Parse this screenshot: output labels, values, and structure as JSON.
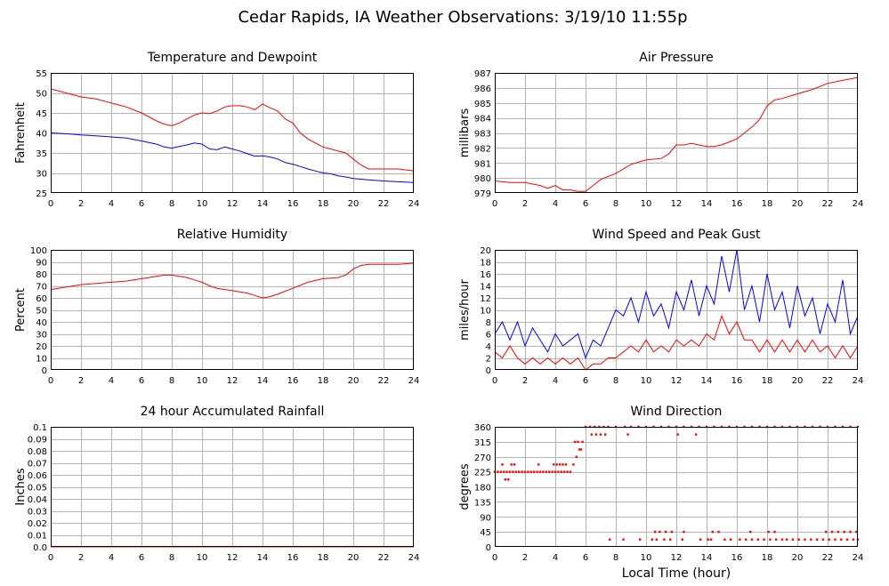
{
  "page": {
    "title": "Cedar Rapids, IA Weather Observations: 3/19/10 11:55p",
    "x_axis_title": "Local Time (hour)"
  },
  "colors": {
    "red": "#ff0000",
    "blue": "#0000ff",
    "grid": "#b4b4b4"
  },
  "chart_data": [
    {
      "id": "temp",
      "type": "line",
      "title": "Temperature and Dewpoint",
      "xlabel": "",
      "ylabel": "Fahrenheit",
      "xlim": [
        0,
        24
      ],
      "ylim": [
        25,
        55
      ],
      "xticks": [
        0,
        2,
        4,
        6,
        8,
        10,
        12,
        14,
        16,
        18,
        20,
        22,
        24
      ],
      "yticks": [
        "25",
        "30",
        "35",
        "40",
        "45",
        "50",
        "55"
      ],
      "grid": true,
      "series": [
        {
          "color": "#ff0000",
          "x": [
            0,
            1,
            2,
            3,
            4,
            5,
            6,
            7,
            7.5,
            8,
            8.5,
            9,
            9.5,
            10,
            10.5,
            11,
            11.5,
            12,
            12.5,
            13,
            13.5,
            14,
            14.5,
            15,
            15.5,
            16,
            16.5,
            17,
            17.5,
            18,
            18.5,
            19,
            19.5,
            20,
            20.5,
            21,
            22,
            23,
            24
          ],
          "y": [
            51,
            50,
            49,
            48.5,
            47.5,
            46.5,
            45,
            43,
            42.2,
            41.8,
            42.5,
            43.5,
            44.5,
            45,
            44.8,
            45.5,
            46.5,
            46.8,
            46.8,
            46.5,
            45.8,
            47.2,
            46.3,
            45.5,
            43.5,
            42.5,
            40,
            38.5,
            37.5,
            36.5,
            36,
            35.5,
            35,
            33.5,
            32,
            31,
            31,
            31,
            30.5
          ]
        },
        {
          "color": "#0000ff",
          "x": [
            0,
            1,
            2,
            3,
            4,
            5,
            6,
            7,
            7.5,
            8,
            8.5,
            9,
            9.5,
            10,
            10.5,
            11,
            11.5,
            12,
            12.5,
            13,
            13.5,
            14,
            14.5,
            15,
            15.5,
            16,
            16.5,
            17,
            17.5,
            18,
            18.5,
            19,
            19.5,
            20,
            21,
            22,
            23,
            24
          ],
          "y": [
            40,
            39.8,
            39.5,
            39.3,
            39,
            38.7,
            38,
            37.2,
            36.5,
            36.2,
            36.6,
            37,
            37.5,
            37.2,
            36,
            35.8,
            36.5,
            36,
            35.5,
            34.8,
            34.2,
            34.3,
            34,
            33.5,
            32.6,
            32.2,
            31.6,
            31,
            30.5,
            30,
            29.8,
            29.3,
            29,
            28.6,
            28.3,
            28,
            27.8,
            27.6
          ]
        }
      ]
    },
    {
      "id": "pressure",
      "type": "line",
      "title": "Air Pressure",
      "xlabel": "",
      "ylabel": "millibars",
      "xlim": [
        0,
        24
      ],
      "ylim": [
        979,
        987
      ],
      "xticks": [
        0,
        2,
        4,
        6,
        8,
        10,
        12,
        14,
        16,
        18,
        20,
        22,
        24
      ],
      "yticks": [
        "979",
        "980",
        "981",
        "982",
        "983",
        "984",
        "985",
        "986",
        "987"
      ],
      "grid": true,
      "series": [
        {
          "color": "#ff0000",
          "x": [
            0,
            1,
            2,
            3,
            3.5,
            4,
            4.5,
            5,
            5.5,
            6,
            6.5,
            7,
            8,
            9,
            10,
            11,
            11.5,
            12,
            12.5,
            13,
            13.5,
            14,
            14.5,
            15,
            15.5,
            16,
            16.5,
            17,
            17.5,
            18,
            18.5,
            19,
            20,
            21,
            22,
            23,
            24
          ],
          "y": [
            979.8,
            979.7,
            979.7,
            979.5,
            979.3,
            979.5,
            979.2,
            979.2,
            979.1,
            979.1,
            979.5,
            979.9,
            980.3,
            980.9,
            981.2,
            981.3,
            981.6,
            982.2,
            982.2,
            982.3,
            982.2,
            982.1,
            982.1,
            982.2,
            982.4,
            982.6,
            983,
            983.4,
            983.9,
            984.8,
            985.2,
            985.3,
            985.6,
            985.9,
            986.3,
            986.5,
            986.7
          ]
        }
      ]
    },
    {
      "id": "humidity",
      "type": "line",
      "title": "Relative Humidity",
      "xlabel": "",
      "ylabel": "Percent",
      "xlim": [
        0,
        24
      ],
      "ylim": [
        0,
        100
      ],
      "xticks": [
        0,
        2,
        4,
        6,
        8,
        10,
        12,
        14,
        16,
        18,
        20,
        22,
        24
      ],
      "yticks": [
        "0",
        "10",
        "20",
        "30",
        "40",
        "50",
        "60",
        "70",
        "80",
        "90",
        "100"
      ],
      "grid": true,
      "series": [
        {
          "color": "#ff0000",
          "x": [
            0,
            1,
            2,
            3,
            4,
            5,
            6,
            7,
            7.5,
            8,
            8.5,
            9,
            9.5,
            10,
            10.5,
            11,
            12,
            13,
            13.5,
            14,
            14.5,
            15,
            16,
            17,
            18,
            19,
            19.5,
            20,
            20.5,
            21,
            22,
            23,
            24
          ],
          "y": [
            67,
            69,
            71,
            72,
            73,
            74,
            76,
            78,
            79,
            79,
            78,
            77,
            75,
            73,
            70,
            68,
            66,
            64,
            62,
            60,
            61,
            63,
            68,
            73,
            76,
            77,
            79,
            84,
            87,
            88,
            88,
            88,
            89
          ]
        }
      ]
    },
    {
      "id": "wind",
      "type": "line",
      "title": "Wind Speed and Peak Gust",
      "xlabel": "",
      "ylabel": "miles/hour",
      "xlim": [
        0,
        24
      ],
      "ylim": [
        0,
        20
      ],
      "xticks": [
        0,
        2,
        4,
        6,
        8,
        10,
        12,
        14,
        16,
        18,
        20,
        22,
        24
      ],
      "yticks": [
        "0",
        "2",
        "4",
        "6",
        "8",
        "10",
        "12",
        "14",
        "16",
        "18",
        "20"
      ],
      "grid": true,
      "series": [
        {
          "color": "#0000ff",
          "x": [
            0,
            0.5,
            1,
            1.5,
            2,
            2.5,
            3,
            3.5,
            4,
            4.5,
            5,
            5.5,
            6,
            6.5,
            7,
            7.5,
            8,
            8.5,
            9,
            9.5,
            10,
            10.5,
            11,
            11.5,
            12,
            12.5,
            13,
            13.5,
            14,
            14.5,
            15,
            15.5,
            16,
            16.5,
            17,
            17.5,
            18,
            18.5,
            19,
            19.5,
            20,
            20.5,
            21,
            21.5,
            22,
            22.5,
            23,
            23.5,
            24
          ],
          "y": [
            6,
            8,
            5,
            8,
            4,
            7,
            5,
            3,
            6,
            4,
            5,
            6,
            2,
            5,
            4,
            7,
            10,
            9,
            12,
            8,
            13,
            9,
            11,
            7,
            13,
            10,
            15,
            9,
            14,
            11,
            19,
            13,
            20,
            10,
            14,
            8,
            16,
            10,
            13,
            7,
            14,
            9,
            12,
            6,
            11,
            8,
            15,
            6,
            9
          ]
        },
        {
          "color": "#ff0000",
          "x": [
            0,
            0.5,
            1,
            1.5,
            2,
            2.5,
            3,
            3.5,
            4,
            4.5,
            5,
            5.5,
            6,
            6.5,
            7,
            7.5,
            8,
            8.5,
            9,
            9.5,
            10,
            10.5,
            11,
            11.5,
            12,
            12.5,
            13,
            13.5,
            14,
            14.5,
            15,
            15.5,
            16,
            16.5,
            17,
            17.5,
            18,
            18.5,
            19,
            19.5,
            20,
            20.5,
            21,
            21.5,
            22,
            22.5,
            23,
            23.5,
            24
          ],
          "y": [
            3,
            2,
            4,
            2,
            1,
            2,
            1,
            2,
            1,
            2,
            1,
            2,
            0,
            1,
            1,
            2,
            2,
            3,
            4,
            3,
            5,
            3,
            4,
            3,
            5,
            4,
            5,
            4,
            6,
            5,
            9,
            6,
            8,
            5,
            5,
            3,
            5,
            3,
            5,
            3,
            5,
            3,
            5,
            3,
            4,
            2,
            4,
            2,
            4
          ]
        }
      ]
    },
    {
      "id": "rain",
      "type": "line",
      "title": "24 hour Accumulated Rainfall",
      "xlabel": "",
      "ylabel": "Inches",
      "xlim": [
        0,
        24
      ],
      "ylim": [
        0,
        0.1
      ],
      "xticks": [
        0,
        2,
        4,
        6,
        8,
        10,
        12,
        14,
        16,
        18,
        20,
        22,
        24
      ],
      "yticks": [
        "0.0",
        "0.01",
        "0.02",
        "0.03",
        "0.04",
        "0.05",
        "0.06",
        "0.07",
        "0.08",
        "0.09",
        "0.1"
      ],
      "grid": true,
      "series": [
        {
          "color": "#ff0000",
          "x": [
            0,
            24
          ],
          "y": [
            0,
            0
          ]
        }
      ]
    },
    {
      "id": "direction",
      "type": "scatter",
      "title": "Wind Direction",
      "xlabel": "Local Time (hour)",
      "ylabel": "degrees",
      "xlim": [
        0,
        24
      ],
      "ylim": [
        0,
        360
      ],
      "xticks": [
        0,
        2,
        4,
        6,
        8,
        10,
        12,
        14,
        16,
        18,
        20,
        22,
        24
      ],
      "yticks": [
        "0",
        "45",
        "90",
        "135",
        "180",
        "225",
        "270",
        "315",
        "360"
      ],
      "grid": true,
      "series": [
        {
          "color": "#ff0000",
          "x": [
            0,
            0.2,
            0.4,
            0.6,
            0.8,
            1.0,
            1.2,
            1.4,
            1.6,
            1.8,
            2.0,
            2.2,
            2.4,
            2.6,
            2.8,
            3.0,
            3.2,
            3.4,
            3.6,
            3.8,
            4.0,
            4.2,
            4.4,
            4.6,
            4.8,
            5.0,
            0.5,
            0.7,
            0.9,
            1.1,
            1.3,
            2.9,
            3.9,
            4.1,
            4.3,
            4.5,
            4.7,
            5.2,
            5.4,
            5.6,
            5.8,
            5.3,
            5.5,
            5.7,
            6.0,
            6.3,
            6.6,
            6.9,
            7.2,
            7.5,
            8.0,
            8.6,
            9.0,
            9.5,
            10.0,
            10.5,
            11.0,
            11.5,
            12.0,
            12.5,
            13.0,
            13.5,
            14.0,
            14.5,
            15.0,
            15.5,
            16.0,
            16.5,
            17.0,
            17.5,
            18.0,
            18.5,
            19.0,
            19.5,
            20.0,
            20.5,
            21.0,
            21.5,
            22.0,
            22.5,
            23.0,
            23.5,
            24.0,
            6.4,
            6.7,
            7.0,
            7.3,
            8.8,
            12.1,
            13.3,
            7.6,
            8.5,
            9.6,
            10.4,
            10.7,
            11.2,
            11.6,
            12.4,
            13.6,
            14.1,
            14.3,
            15.2,
            15.6,
            16.2,
            16.6,
            17.0,
            17.4,
            17.8,
            18.2,
            18.6,
            19.0,
            19.3,
            19.7,
            20.1,
            20.5,
            20.9,
            21.3,
            21.7,
            22.1,
            22.5,
            22.9,
            23.3,
            23.7,
            24.0,
            10.6,
            10.9,
            11.3,
            11.7,
            12.5,
            14.4,
            14.8,
            16.9,
            18.1,
            18.5,
            21.9,
            22.3,
            22.7,
            23.1,
            23.5,
            23.9
          ],
          "y": [
            225,
            225,
            225,
            225,
            225,
            225,
            225,
            225,
            225,
            225,
            225,
            225,
            225,
            225,
            225,
            225,
            225,
            225,
            225,
            225,
            225,
            225,
            225,
            225,
            225,
            225,
            247,
            202,
            202,
            247,
            247,
            247,
            247,
            247,
            247,
            247,
            247,
            247,
            270,
            292,
            315,
            315,
            315,
            292,
            360,
            360,
            360,
            360,
            360,
            360,
            360,
            360,
            360,
            360,
            360,
            360,
            360,
            360,
            360,
            360,
            360,
            360,
            360,
            360,
            360,
            360,
            360,
            360,
            360,
            360,
            360,
            360,
            360,
            360,
            360,
            360,
            360,
            360,
            360,
            360,
            360,
            360,
            360,
            337,
            337,
            337,
            337,
            337,
            337,
            337,
            22,
            22,
            22,
            22,
            22,
            22,
            22,
            22,
            22,
            22,
            22,
            22,
            22,
            22,
            22,
            22,
            22,
            22,
            22,
            22,
            22,
            22,
            22,
            22,
            22,
            22,
            22,
            22,
            22,
            22,
            22,
            22,
            22,
            22,
            45,
            45,
            45,
            45,
            45,
            45,
            45,
            45,
            45,
            45,
            45,
            45,
            45,
            45,
            45,
            45
          ]
        }
      ]
    }
  ]
}
